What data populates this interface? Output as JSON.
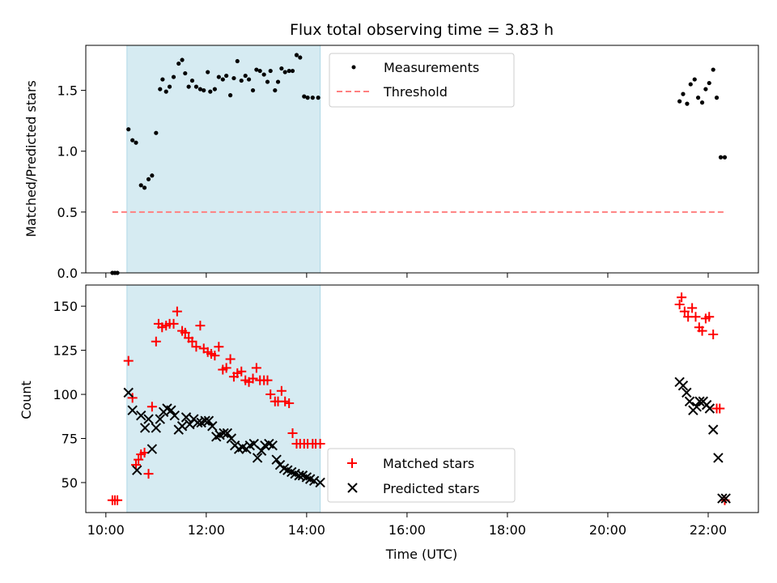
{
  "figure": {
    "title": "Flux total observing time = 3.83 h",
    "xlabel": "Time (UTC)"
  },
  "chart_data": [
    {
      "type": "scatter",
      "panel": "top",
      "ylabel": "Matched/Predicted stars",
      "xlim_hours": [
        9.6,
        23.0
      ],
      "ylim": [
        0,
        1.87
      ],
      "yticks": [
        "0.0",
        "0.5",
        "1.0",
        "1.5"
      ],
      "highlight_interval_hours": [
        10.42,
        14.27
      ],
      "highlight_color": "#add8e6",
      "legend_position": "top-center",
      "series": [
        {
          "name": "Measurements",
          "marker": "dot",
          "color": "#000000",
          "x_hours": [
            10.13,
            10.18,
            10.23,
            10.45,
            10.53,
            10.6,
            10.7,
            10.77,
            10.85,
            10.92,
            11.0,
            11.08,
            11.13,
            11.2,
            11.27,
            11.35,
            11.45,
            11.52,
            11.58,
            11.65,
            11.72,
            11.8,
            11.88,
            11.95,
            12.03,
            12.08,
            12.17,
            12.25,
            12.33,
            12.4,
            12.48,
            12.55,
            12.62,
            12.7,
            12.78,
            12.85,
            12.93,
            13.0,
            13.07,
            13.15,
            13.22,
            13.28,
            13.37,
            13.43,
            13.5,
            13.57,
            13.65,
            13.72,
            13.8,
            13.87,
            13.95,
            14.02,
            14.12,
            14.23,
            21.43,
            21.5,
            21.58,
            21.65,
            21.73,
            21.8,
            21.88,
            21.95,
            22.02,
            22.1,
            22.17,
            22.25,
            22.33
          ],
          "y": [
            0.0,
            0.0,
            0.0,
            1.18,
            1.09,
            1.07,
            0.72,
            0.7,
            0.77,
            0.8,
            1.15,
            1.51,
            1.59,
            1.49,
            1.53,
            1.61,
            1.72,
            1.75,
            1.64,
            1.53,
            1.58,
            1.53,
            1.51,
            1.5,
            1.65,
            1.49,
            1.51,
            1.61,
            1.59,
            1.62,
            1.46,
            1.6,
            1.74,
            1.58,
            1.62,
            1.59,
            1.5,
            1.67,
            1.66,
            1.63,
            1.57,
            1.66,
            1.5,
            1.57,
            1.68,
            1.65,
            1.66,
            1.66,
            1.79,
            1.77,
            1.45,
            1.44,
            1.44,
            1.44,
            1.41,
            1.47,
            1.39,
            1.55,
            1.59,
            1.44,
            1.4,
            1.51,
            1.56,
            1.67,
            1.44,
            0.95,
            0.95
          ]
        },
        {
          "name": "Threshold",
          "marker": "dashed-line",
          "color": "#ff8080",
          "x_hours": [
            10.13,
            22.33
          ],
          "y": [
            0.5,
            0.5
          ]
        }
      ]
    },
    {
      "type": "scatter",
      "panel": "bottom",
      "ylabel": "Count",
      "xlim_hours": [
        9.6,
        23.0
      ],
      "ylim": [
        33,
        162
      ],
      "yticks": [
        "50",
        "75",
        "100",
        "125",
        "150"
      ],
      "xticks": [
        "10:00",
        "12:00",
        "14:00",
        "16:00",
        "18:00",
        "20:00",
        "22:00"
      ],
      "xtick_hours": [
        10,
        12,
        14,
        16,
        18,
        20,
        22
      ],
      "highlight_interval_hours": [
        10.42,
        14.27
      ],
      "highlight_color": "#add8e6",
      "legend_position": "bottom-center",
      "series": [
        {
          "name": "Matched stars",
          "marker": "plus",
          "color": "#ff0000",
          "x_hours": [
            10.13,
            10.18,
            10.23,
            10.45,
            10.53,
            10.6,
            10.65,
            10.7,
            10.77,
            10.85,
            10.92,
            11.0,
            11.05,
            11.12,
            11.2,
            11.27,
            11.35,
            11.42,
            11.52,
            11.58,
            11.65,
            11.72,
            11.8,
            11.88,
            11.95,
            12.03,
            12.1,
            12.17,
            12.25,
            12.33,
            12.4,
            12.48,
            12.55,
            12.62,
            12.7,
            12.78,
            12.85,
            12.93,
            13.0,
            13.07,
            13.15,
            13.22,
            13.28,
            13.37,
            13.43,
            13.5,
            13.57,
            13.65,
            13.72,
            13.8,
            13.87,
            13.95,
            14.02,
            14.12,
            14.18,
            14.27,
            21.43,
            21.47,
            21.53,
            21.6,
            21.68,
            21.75,
            21.82,
            21.88,
            21.95,
            22.02,
            22.1,
            22.17,
            22.23,
            22.33
          ],
          "y": [
            40,
            40,
            40,
            119,
            98,
            60,
            63,
            66,
            67,
            55,
            93,
            130,
            140,
            138,
            139,
            140,
            140,
            147,
            136,
            135,
            132,
            130,
            127,
            139,
            126,
            124,
            123,
            122,
            127,
            114,
            115,
            120,
            110,
            112,
            113,
            108,
            107,
            109,
            115,
            108,
            108,
            108,
            100,
            96,
            96,
            102,
            96,
            95,
            78,
            72,
            72,
            72,
            72,
            72,
            72,
            72,
            151,
            155,
            147,
            144,
            149,
            144,
            138,
            136,
            143,
            144,
            134,
            92,
            92,
            40
          ],
          "y_note": ""
        },
        {
          "name": "Predicted stars",
          "marker": "x",
          "color": "#000000",
          "x_hours": [
            10.45,
            10.53,
            10.62,
            10.7,
            10.78,
            10.85,
            10.92,
            11.0,
            11.08,
            11.15,
            11.22,
            11.3,
            11.37,
            11.45,
            11.52,
            11.6,
            11.67,
            11.75,
            11.83,
            11.9,
            11.98,
            12.05,
            12.12,
            12.2,
            12.27,
            12.35,
            12.42,
            12.5,
            12.57,
            12.65,
            12.72,
            12.8,
            12.87,
            12.95,
            13.02,
            13.1,
            13.17,
            13.25,
            13.32,
            13.4,
            13.47,
            13.55,
            13.62,
            13.7,
            13.77,
            13.85,
            13.92,
            14.0,
            14.07,
            14.15,
            14.27,
            21.43,
            21.5,
            21.57,
            21.63,
            21.7,
            21.77,
            21.83,
            21.9,
            21.97,
            22.03,
            22.1,
            22.2,
            22.28,
            22.35
          ],
          "y": [
            101,
            91,
            57,
            88,
            81,
            86,
            69,
            81,
            86,
            90,
            92,
            91,
            88,
            80,
            82,
            87,
            83,
            86,
            84,
            84,
            85,
            85,
            82,
            76,
            77,
            78,
            78,
            75,
            71,
            69,
            70,
            69,
            71,
            72,
            64,
            68,
            71,
            72,
            71,
            63,
            60,
            58,
            57,
            56,
            55,
            54,
            54,
            53,
            52,
            51,
            50,
            107,
            105,
            101,
            96,
            91,
            93,
            96,
            96,
            94,
            92,
            80,
            64,
            41,
            41
          ]
        }
      ]
    }
  ]
}
